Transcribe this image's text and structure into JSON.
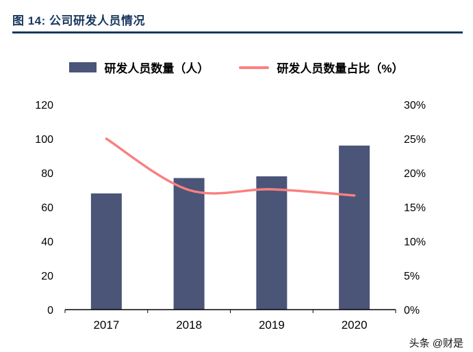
{
  "header": {
    "title": "图 14:  公司研发人员情况"
  },
  "legend": [
    {
      "label": "研发人员数量（人）",
      "type": "bar",
      "color": "#4a5578"
    },
    {
      "label": "研发人员数量占比（%）",
      "type": "line",
      "color": "#f98080"
    }
  ],
  "watermark": "头条 @财是",
  "chart_data": {
    "type": "bar",
    "subtype": "bar+line dual axis",
    "title": "公司研发人员情况",
    "categories": [
      "2017",
      "2018",
      "2019",
      "2020"
    ],
    "series": [
      {
        "name": "研发人员数量（人）",
        "type": "bar",
        "axis": "left",
        "values": [
          68,
          77,
          78,
          96
        ],
        "color": "#4a5578"
      },
      {
        "name": "研发人员数量占比（%）",
        "type": "line",
        "axis": "right",
        "values": [
          25,
          17.5,
          17.6,
          16.7
        ],
        "color": "#f98080"
      }
    ],
    "left_axis": {
      "min": 0,
      "max": 120,
      "step": 20,
      "ticks": [
        "0",
        "20",
        "40",
        "60",
        "80",
        "100",
        "120"
      ]
    },
    "right_axis": {
      "min": 0,
      "max": 30,
      "step": 5,
      "ticks": [
        "0%",
        "5%",
        "10%",
        "15%",
        "20%",
        "25%",
        "30%"
      ]
    },
    "grid": false,
    "legend_position": "top"
  }
}
